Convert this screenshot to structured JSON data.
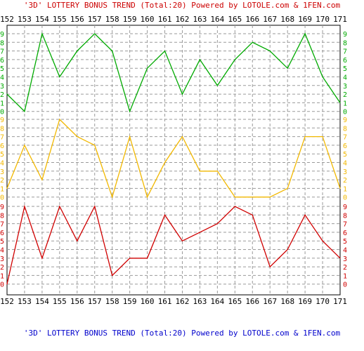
{
  "title_top": "'3D' LOTTERY BONUS TREND (Total:20)  Powered by LOTOLE.com & 1FEN.com",
  "title_bottom": "'3D' LOTTERY BONUS TREND (Total:20)  Powered by LOTOLE.com & 1FEN.com",
  "colors": {
    "title_top": "#cc0000",
    "title_bottom": "#0000cc",
    "grid": "#9a9a9a",
    "text": "#000000"
  },
  "chart_data": {
    "type": "line",
    "title": "'3D' LOTTERY BONUS TREND (Total:20)  Powered by LOTOLE.com & 1FEN.com",
    "x": [
      152,
      153,
      154,
      155,
      156,
      157,
      158,
      159,
      160,
      161,
      162,
      163,
      164,
      165,
      166,
      167,
      168,
      169,
      170,
      171
    ],
    "grid": true,
    "panels": [
      {
        "name": "green",
        "color": "#00aa00",
        "ylim": [
          0,
          9
        ],
        "values": [
          2,
          0,
          9,
          4,
          7,
          9,
          7,
          0,
          5,
          7,
          2,
          6,
          3,
          6,
          8,
          7,
          5,
          9,
          4,
          1
        ]
      },
      {
        "name": "orange",
        "color": "#f2b800",
        "ylim": [
          0,
          9
        ],
        "values": [
          1,
          6,
          2,
          9,
          7,
          6,
          0,
          7,
          0,
          4,
          7,
          3,
          3,
          0,
          0,
          0,
          1,
          7,
          7,
          1
        ]
      },
      {
        "name": "red",
        "color": "#d00000",
        "ylim": [
          0,
          9
        ],
        "values": [
          0,
          9,
          3,
          9,
          5,
          9,
          1,
          3,
          3,
          8,
          5,
          6,
          7,
          9,
          8,
          2,
          4,
          8,
          5,
          3
        ]
      }
    ]
  }
}
